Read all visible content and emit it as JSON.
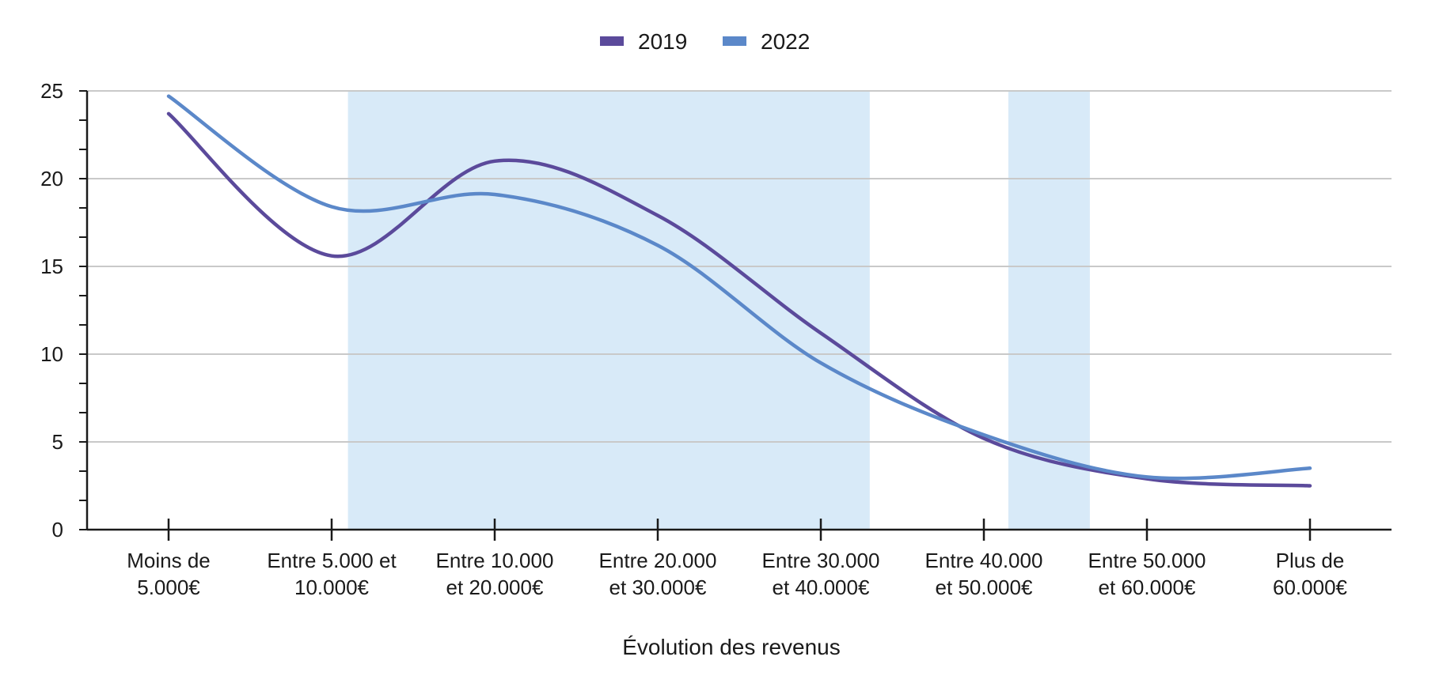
{
  "chart_data": {
    "type": "line",
    "title": "",
    "xlabel": "Évolution des revenus",
    "ylabel": "",
    "ylim": [
      0,
      25
    ],
    "yticks": [
      "0",
      "5",
      "10",
      "15",
      "20",
      "25"
    ],
    "grid": true,
    "legend_position": "top-center",
    "categories": [
      [
        "Moins de",
        "5.000€"
      ],
      [
        "Entre 5.000 et",
        "10.000€"
      ],
      [
        "Entre 10.000",
        "et 20.000€"
      ],
      [
        "Entre 20.000",
        "et 30.000€"
      ],
      [
        "Entre 30.000",
        "et 40.000€"
      ],
      [
        "Entre 40.000",
        "et 50.000€"
      ],
      [
        "Entre 50.000",
        "et 60.000€"
      ],
      [
        "Plus de",
        "60.000€"
      ]
    ],
    "series": [
      {
        "name": "2019",
        "color": "#5b4a9b",
        "values": [
          23.7,
          15.6,
          21.0,
          17.9,
          11.2,
          5.2,
          2.9,
          2.5
        ]
      },
      {
        "name": "2022",
        "color": "#5b88c9",
        "values": [
          24.7,
          18.4,
          19.1,
          16.2,
          9.5,
          5.4,
          3.0,
          3.5
        ]
      }
    ],
    "highlight_bands": [
      {
        "from": 1.6,
        "to": 4.8,
        "color": "#d8eaf8"
      },
      {
        "from": 5.65,
        "to": 6.15,
        "color": "#d8eaf8"
      }
    ],
    "colors": {
      "grid": "#c9c9c9",
      "axis": "#1a1a1a",
      "text": "#1a1a1a"
    }
  }
}
